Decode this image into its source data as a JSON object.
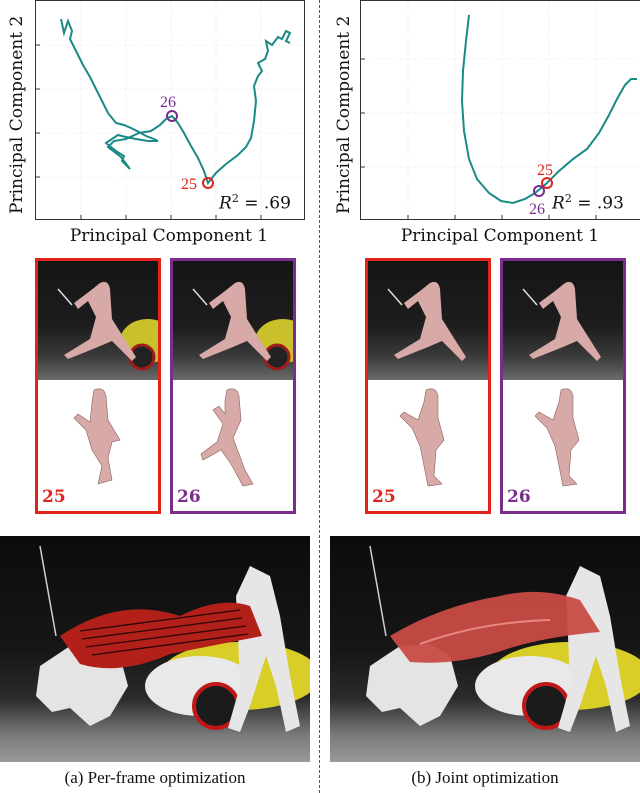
{
  "panels": [
    {
      "id": "a",
      "plot": {
        "xlabel": "Principal Component 1",
        "ylabel": "Principal Component 2",
        "r2_var": "R",
        "r2_exp": "2",
        "r2_eq": " = .69",
        "markers": [
          {
            "label": "26",
            "color": "#7b2d8e"
          },
          {
            "label": "25",
            "color": "#e0241b"
          }
        ]
      },
      "frames": [
        {
          "number": "25",
          "color": "#e0241b"
        },
        {
          "number": "26",
          "color": "#7b2d8e"
        }
      ],
      "caption": "(a) Per-frame optimization"
    },
    {
      "id": "b",
      "plot": {
        "xlabel": "Principal Component 1",
        "ylabel": "Principal Component 2",
        "r2_var": "R",
        "r2_exp": "2",
        "r2_eq": " = .93",
        "markers": [
          {
            "label": "25",
            "color": "#e0241b"
          },
          {
            "label": "26",
            "color": "#7b2d8e"
          }
        ]
      },
      "frames": [
        {
          "number": "25",
          "color": "#e0241b"
        },
        {
          "number": "26",
          "color": "#7b2d8e"
        }
      ],
      "caption": "(b) Joint optimization"
    }
  ],
  "colors": {
    "trajectory": "#1a8a87",
    "frame_25": "#e0241b",
    "frame_26": "#7b2d8e",
    "cloth_a": "#b3201a",
    "cloth_b": "#c84b45"
  }
}
